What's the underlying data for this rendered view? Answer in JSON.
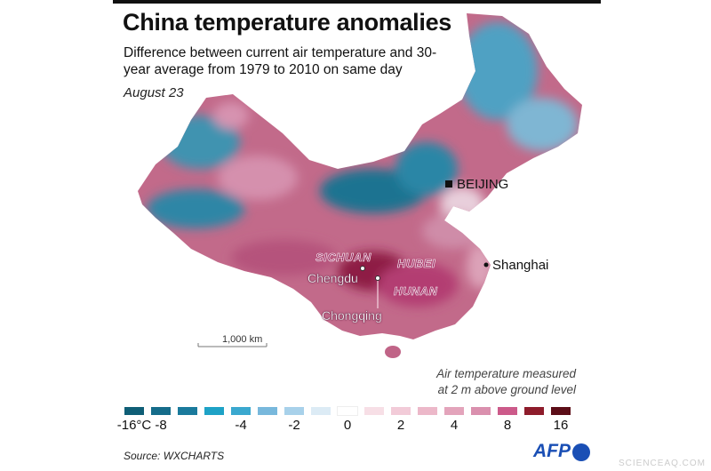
{
  "header": {
    "title": "China temperature anomalies",
    "subtitle": "Difference between current air temperature and 30-year average from 1979 to 2010 on same day",
    "date": "August 23"
  },
  "map": {
    "cities": {
      "beijing": "BEIJING",
      "shanghai": "Shanghai",
      "chengdu": "Chengdu",
      "chongqing": "Chongqing"
    },
    "provinces": {
      "sichuan": "SICHUAN",
      "hubei": "HUBEI",
      "hunan": "HUNAN"
    },
    "scale": "1,000 km",
    "note": [
      "Air temperature measured",
      "at 2 m above ground level"
    ]
  },
  "legend": {
    "colors": [
      "#0f5e76",
      "#156c8a",
      "#1a7a9c",
      "#1ea2c6",
      "#3aa8cf",
      "#78b8dc",
      "#a8d1ea",
      "#dcebf5",
      "#ffffff",
      "#f7dfe6",
      "#f2cbd8",
      "#ecb8c9",
      "#e3a4bb",
      "#da90ae",
      "#cc5a8a",
      "#8e1c2b",
      "#5c0e18"
    ],
    "labels": [
      {
        "i": 0,
        "t": "-16°C"
      },
      {
        "i": 1,
        "t": "-8"
      },
      {
        "i": 4,
        "t": "-4"
      },
      {
        "i": 6,
        "t": "-2"
      },
      {
        "i": 8,
        "t": "0"
      },
      {
        "i": 10,
        "t": "2"
      },
      {
        "i": 12,
        "t": "4"
      },
      {
        "i": 14,
        "t": "8"
      },
      {
        "i": 16,
        "t": "16"
      }
    ]
  },
  "footer": {
    "source": "Source: WXCHARTS",
    "brand": "AFP",
    "watermark": "SCIENCEAQ.COM"
  }
}
